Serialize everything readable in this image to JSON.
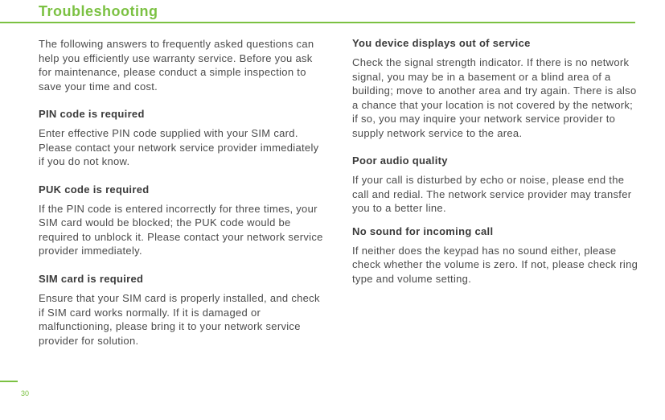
{
  "title": "Troubleshooting",
  "pageNumber": "30",
  "colors": {
    "accent": "#7bc142",
    "text": "#4a4a4a",
    "heading": "#3a3a3a"
  },
  "left": {
    "intro": "The following answers to frequently asked questions can help you efficiently use warranty service. Before you ask for maintenance, please conduct a simple inspection to save your time and cost.",
    "s1h": "PIN code is required",
    "s1b": "Enter effective PIN code supplied with your SIM card. Please contact your network service provider immediately if you do not know.",
    "s2h": "PUK code is required",
    "s2b": "If the PIN code is entered incorrectly for three times, your SIM card would be blocked; the PUK code would be required to unblock it. Please contact your network service provider immediately.",
    "s3h": "SIM card is required",
    "s3b": "Ensure that your SIM card is properly installed, and check if SIM card works normally. If it is damaged or malfunctioning, please bring it to your network service provider for solution."
  },
  "right": {
    "s1h": "You device displays out of service",
    "s1b": "Check the signal strength indicator. If there is no network signal, you may be in a basement or a blind area of a building; move to another area and try again. There is also a chance that your location is not covered by the network; if so, you may inquire your network service provider to supply network service to the area.",
    "s2h": "Poor audio quality",
    "s2b": "If your call is disturbed by echo or noise, please end the call and redial. The network service provider may transfer you to a better line.",
    "s3h": "No sound for incoming call",
    "s3b": "If neither does the keypad has no sound either, please check whether the volume is zero. If not, please check ring type and volume setting."
  }
}
